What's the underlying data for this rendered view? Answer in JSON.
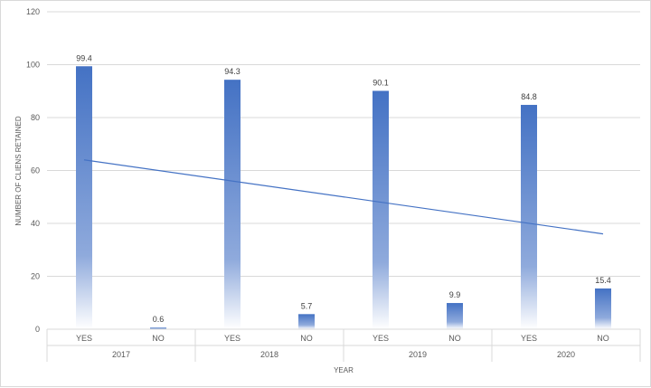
{
  "chart_data": {
    "type": "bar",
    "xlabel": "YEAR",
    "ylabel": "NUMBER OF CLIENS RETAINED",
    "ylim": [
      0,
      120
    ],
    "yticks": [
      0,
      20,
      40,
      60,
      80,
      100,
      120
    ],
    "grid": true,
    "groups": [
      {
        "label": "2017",
        "categories": [
          "YES",
          "NO"
        ],
        "values": [
          99.4,
          0.6
        ],
        "value_labels": [
          "99.4",
          "0.6"
        ]
      },
      {
        "label": "2018",
        "categories": [
          "YES",
          "NO"
        ],
        "values": [
          94.3,
          5.7
        ],
        "value_labels": [
          "94.3",
          "5.7"
        ]
      },
      {
        "label": "2019",
        "categories": [
          "YES",
          "NO"
        ],
        "values": [
          90.1,
          9.9
        ],
        "value_labels": [
          "90.1",
          "9.9"
        ]
      },
      {
        "label": "2020",
        "categories": [
          "YES",
          "NO"
        ],
        "values": [
          84.8,
          15.4
        ],
        "value_labels": [
          "84.8",
          "15.4"
        ]
      }
    ],
    "trendline": {
      "type": "linear",
      "color": "#4472c4"
    },
    "bar_color": "#4472c4"
  }
}
